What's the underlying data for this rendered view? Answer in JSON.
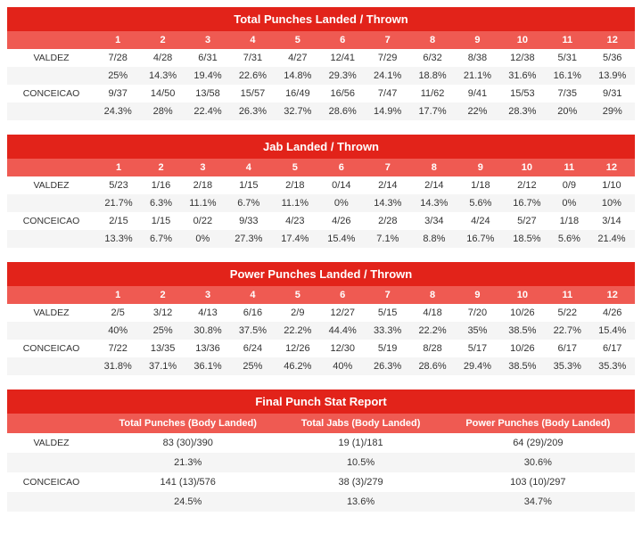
{
  "colors": {
    "title_bg": "#e2231a",
    "header_bg": "#ef5a52",
    "text": "#333333",
    "row_alt": "#f5f5f5",
    "bg": "#ffffff"
  },
  "fonts": {
    "family": "Arial",
    "title_size": 13,
    "body_size": 11
  },
  "rounds": [
    "1",
    "2",
    "3",
    "4",
    "5",
    "6",
    "7",
    "8",
    "9",
    "10",
    "11",
    "12"
  ],
  "fighters": [
    "VALDEZ",
    "CONCEICAO"
  ],
  "tables": [
    {
      "title": "Total Punches Landed / Thrown",
      "rows": [
        {
          "label": "VALDEZ",
          "vals": [
            "7/28",
            "4/28",
            "6/31",
            "7/31",
            "4/27",
            "12/41",
            "7/29",
            "6/32",
            "8/38",
            "12/38",
            "5/31",
            "5/36"
          ]
        },
        {
          "label": "",
          "vals": [
            "25%",
            "14.3%",
            "19.4%",
            "22.6%",
            "14.8%",
            "29.3%",
            "24.1%",
            "18.8%",
            "21.1%",
            "31.6%",
            "16.1%",
            "13.9%"
          ]
        },
        {
          "label": "CONCEICAO",
          "vals": [
            "9/37",
            "14/50",
            "13/58",
            "15/57",
            "16/49",
            "16/56",
            "7/47",
            "11/62",
            "9/41",
            "15/53",
            "7/35",
            "9/31"
          ]
        },
        {
          "label": "",
          "vals": [
            "24.3%",
            "28%",
            "22.4%",
            "26.3%",
            "32.7%",
            "28.6%",
            "14.9%",
            "17.7%",
            "22%",
            "28.3%",
            "20%",
            "29%"
          ]
        }
      ]
    },
    {
      "title": "Jab Landed / Thrown",
      "rows": [
        {
          "label": "VALDEZ",
          "vals": [
            "5/23",
            "1/16",
            "2/18",
            "1/15",
            "2/18",
            "0/14",
            "2/14",
            "2/14",
            "1/18",
            "2/12",
            "0/9",
            "1/10"
          ]
        },
        {
          "label": "",
          "vals": [
            "21.7%",
            "6.3%",
            "11.1%",
            "6.7%",
            "11.1%",
            "0%",
            "14.3%",
            "14.3%",
            "5.6%",
            "16.7%",
            "0%",
            "10%"
          ]
        },
        {
          "label": "CONCEICAO",
          "vals": [
            "2/15",
            "1/15",
            "0/22",
            "9/33",
            "4/23",
            "4/26",
            "2/28",
            "3/34",
            "4/24",
            "5/27",
            "1/18",
            "3/14"
          ]
        },
        {
          "label": "",
          "vals": [
            "13.3%",
            "6.7%",
            "0%",
            "27.3%",
            "17.4%",
            "15.4%",
            "7.1%",
            "8.8%",
            "16.7%",
            "18.5%",
            "5.6%",
            "21.4%"
          ]
        }
      ]
    },
    {
      "title": "Power Punches Landed / Thrown",
      "rows": [
        {
          "label": "VALDEZ",
          "vals": [
            "2/5",
            "3/12",
            "4/13",
            "6/16",
            "2/9",
            "12/27",
            "5/15",
            "4/18",
            "7/20",
            "10/26",
            "5/22",
            "4/26"
          ]
        },
        {
          "label": "",
          "vals": [
            "40%",
            "25%",
            "30.8%",
            "37.5%",
            "22.2%",
            "44.4%",
            "33.3%",
            "22.2%",
            "35%",
            "38.5%",
            "22.7%",
            "15.4%"
          ]
        },
        {
          "label": "CONCEICAO",
          "vals": [
            "7/22",
            "13/35",
            "13/36",
            "6/24",
            "12/26",
            "12/30",
            "5/19",
            "8/28",
            "5/17",
            "10/26",
            "6/17",
            "6/17"
          ]
        },
        {
          "label": "",
          "vals": [
            "31.8%",
            "37.1%",
            "36.1%",
            "25%",
            "46.2%",
            "40%",
            "26.3%",
            "28.6%",
            "29.4%",
            "38.5%",
            "35.3%",
            "35.3%"
          ]
        }
      ]
    }
  ],
  "final": {
    "title": "Final Punch Stat Report",
    "columns": [
      "Total Punches (Body Landed)",
      "Total Jabs (Body Landed)",
      "Power Punches (Body Landed)"
    ],
    "rows": [
      {
        "label": "VALDEZ",
        "vals": [
          "83 (30)/390",
          "19 (1)/181",
          "64 (29)/209"
        ]
      },
      {
        "label": "",
        "vals": [
          "21.3%",
          "10.5%",
          "30.6%"
        ]
      },
      {
        "label": "CONCEICAO",
        "vals": [
          "141 (13)/576",
          "38 (3)/279",
          "103 (10)/297"
        ]
      },
      {
        "label": "",
        "vals": [
          "24.5%",
          "13.6%",
          "34.7%"
        ]
      }
    ]
  }
}
